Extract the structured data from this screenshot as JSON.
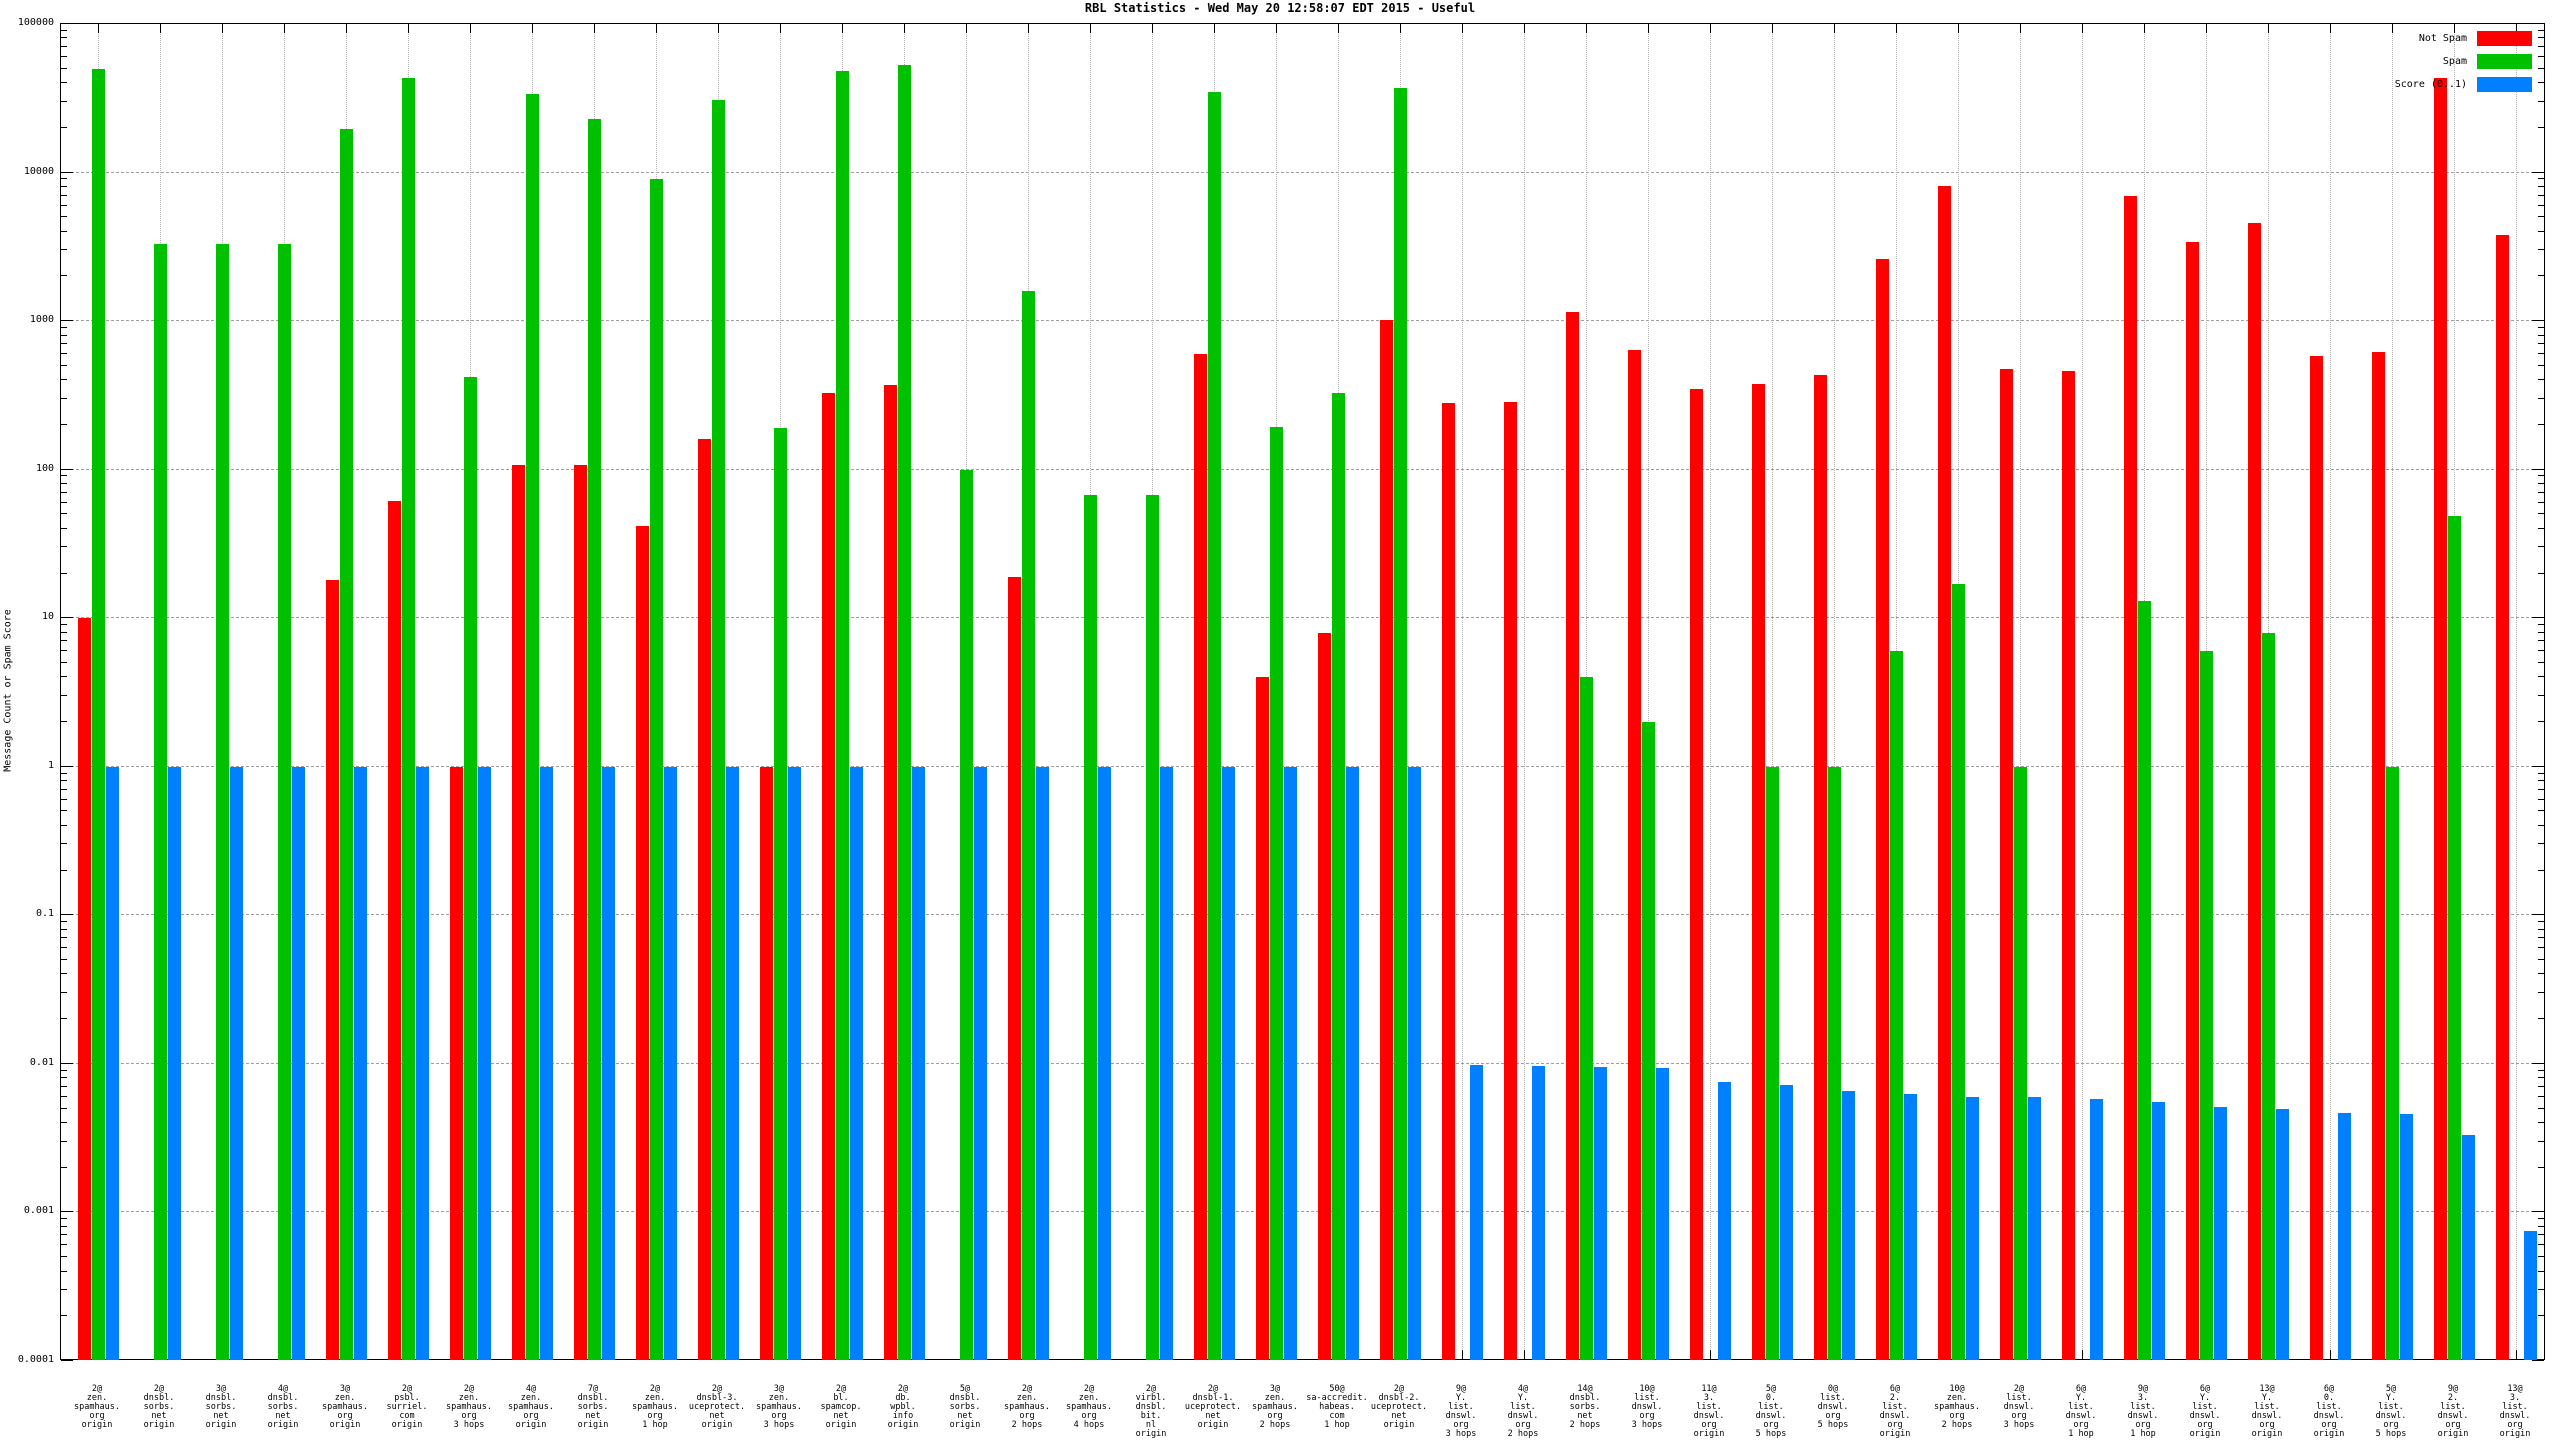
{
  "header": {
    "title": "RBL Statistics - Wed May 20 12:58:07 EDT 2015 - Useful"
  },
  "y_axis": {
    "label": "Message Count or Spam Score",
    "tick_labels": [
      "100000",
      "10000",
      "1000",
      "100",
      "10",
      "1",
      "0.1",
      "0.01",
      "0.001",
      "0.0001"
    ]
  },
  "legend": {
    "position": "top-right",
    "items": [
      {
        "name": "not-spam",
        "label": "Not Spam",
        "color": "#ff0000"
      },
      {
        "name": "spam",
        "label": "Spam",
        "color": "#00c000"
      },
      {
        "name": "score",
        "label": "Score (0..1)",
        "color": "#0080ff"
      }
    ]
  },
  "colors": {
    "not_spam": "#ff0000",
    "spam": "#00c000",
    "score": "#0080ff",
    "grid": "#9e9e9e",
    "frame": "#000000"
  },
  "chart_data": {
    "type": "bar",
    "y_scale": "log",
    "ylim": [
      0.0001,
      100000
    ],
    "grid": true,
    "title": "RBL Statistics - Wed May 20 12:58:07 EDT 2015 - Useful",
    "ylabel": "Message Count or Spam Score",
    "series_names": [
      "Not Spam",
      "Spam",
      "Score (0..1)"
    ],
    "groups": [
      {
        "label": "2@zen.spamhaus.org origin",
        "label_lines": [
          "2@",
          "zen.",
          "spamhaus.",
          "org",
          "origin"
        ],
        "not_spam": 10,
        "spam": 50000,
        "score": 1.0
      },
      {
        "label": "2@dnsbl.sorbs.net origin",
        "label_lines": [
          "2@",
          "dnsbl.",
          "sorbs.",
          "net",
          "origin"
        ],
        "not_spam": 0,
        "spam": 3300,
        "score": 1.0
      },
      {
        "label": "3@dnsbl.sorbs.net origin",
        "label_lines": [
          "3@",
          "dnsbl.",
          "sorbs.",
          "net",
          "origin"
        ],
        "not_spam": 0,
        "spam": 3300,
        "score": 1.0
      },
      {
        "label": "4@dnsbl.sorbs.net origin",
        "label_lines": [
          "4@",
          "dnsbl.",
          "sorbs.",
          "net",
          "origin"
        ],
        "not_spam": 0,
        "spam": 3300,
        "score": 1.0
      },
      {
        "label": "3@zen.spamhaus.org origin",
        "label_lines": [
          "3@",
          "zen.",
          "spamhaus.",
          "org",
          "origin"
        ],
        "not_spam": 18,
        "spam": 19500,
        "score": 1.0
      },
      {
        "label": "2@psbl.surriel.com origin",
        "label_lines": [
          "2@",
          "psbl.",
          "surriel.",
          "com",
          "origin"
        ],
        "not_spam": 62,
        "spam": 43000,
        "score": 1.0
      },
      {
        "label": "2@zen.spamhaus.org 3 hops",
        "label_lines": [
          "2@",
          "zen.",
          "spamhaus.",
          "org",
          "3 hops"
        ],
        "not_spam": 1,
        "spam": 420,
        "score": 1.0
      },
      {
        "label": "4@zen.spamhaus.org origin",
        "label_lines": [
          "4@",
          "zen.",
          "spamhaus.",
          "org",
          "origin"
        ],
        "not_spam": 107,
        "spam": 34000,
        "score": 1.0
      },
      {
        "label": "7@dnsbl.sorbs.net origin",
        "label_lines": [
          "7@",
          "dnsbl.",
          "sorbs.",
          "net",
          "origin"
        ],
        "not_spam": 107,
        "spam": 23000,
        "score": 1.0
      },
      {
        "label": "2@zen.spamhaus.org 1 hop",
        "label_lines": [
          "2@",
          "zen.",
          "spamhaus.",
          "org",
          "1 hop"
        ],
        "not_spam": 42,
        "spam": 9000,
        "score": 1.0
      },
      {
        "label": "2@dnsbl-3.uceprotect.net origin",
        "label_lines": [
          "2@",
          "dnsbl-3.",
          "uceprotect.",
          "net",
          "origin"
        ],
        "not_spam": 160,
        "spam": 31000,
        "score": 1.0
      },
      {
        "label": "3@zen.spamhaus.org 3 hops",
        "label_lines": [
          "3@",
          "zen.",
          "spamhaus.",
          "org",
          "3 hops"
        ],
        "not_spam": 1,
        "spam": 190,
        "score": 1.0
      },
      {
        "label": "2@bl.spamcop.net origin",
        "label_lines": [
          "2@",
          "bl.",
          "spamcop.",
          "net",
          "origin"
        ],
        "not_spam": 330,
        "spam": 48000,
        "score": 1.0
      },
      {
        "label": "2@db.wpbl.info origin",
        "label_lines": [
          "2@",
          "db.",
          "wpbl.",
          "info",
          "origin"
        ],
        "not_spam": 370,
        "spam": 53000,
        "score": 1.0
      },
      {
        "label": "5@dnsbl.sorbs.net origin",
        "label_lines": [
          "5@",
          "dnsbl.",
          "sorbs.",
          "net",
          "origin"
        ],
        "not_spam": 0,
        "spam": 100,
        "score": 1.0
      },
      {
        "label": "2@zen.spamhaus.org 2 hops",
        "label_lines": [
          "2@",
          "zen.",
          "spamhaus.",
          "org",
          "2 hops"
        ],
        "not_spam": 19,
        "spam": 1600,
        "score": 1.0
      },
      {
        "label": "2@zen.spamhaus.org 4 hops",
        "label_lines": [
          "2@",
          "zen.",
          "spamhaus.",
          "org",
          "4 hops"
        ],
        "not_spam": 0,
        "spam": 68,
        "score": 1.0
      },
      {
        "label": "2@virbl.dnsbl.bit.nl origin",
        "label_lines": [
          "2@",
          "virbl.",
          "dnsbl.",
          "bit.",
          "nl",
          "origin"
        ],
        "not_spam": 0,
        "spam": 68,
        "score": 1.0
      },
      {
        "label": "2@dnsbl-1.uceprotect.net origin",
        "label_lines": [
          "2@",
          "dnsbl-1.",
          "uceprotect.",
          "net",
          "origin"
        ],
        "not_spam": 600,
        "spam": 35000,
        "score": 1.0
      },
      {
        "label": "3@zen.spamhaus.org 2 hops",
        "label_lines": [
          "3@",
          "zen.",
          "spamhaus.",
          "org",
          "2 hops"
        ],
        "not_spam": 4,
        "spam": 195,
        "score": 1.0
      },
      {
        "label": "50@sa-accredit.habeas.com 1 hop",
        "label_lines": [
          "50@",
          "sa-accredit.",
          "habeas.",
          "com",
          "1 hop"
        ],
        "not_spam": 8,
        "spam": 330,
        "score": 1.0
      },
      {
        "label": "2@dnsbl-2.uceprotect.net origin",
        "label_lines": [
          "2@",
          "dnsbl-2.",
          "uceprotect.",
          "net",
          "origin"
        ],
        "not_spam": 1020,
        "spam": 37000,
        "score": 1.0
      },
      {
        "label": "9@Y.list.dnswl.org 3 hops",
        "label_lines": [
          "9@",
          "Y.",
          "list.",
          "dnswl.",
          "org",
          "3 hops"
        ],
        "not_spam": 280,
        "spam": 0,
        "score": 0.0098
      },
      {
        "label": "4@Y.list.dnswl.org 2 hops",
        "label_lines": [
          "4@",
          "Y.",
          "list.",
          "dnswl.",
          "org",
          "2 hops"
        ],
        "not_spam": 285,
        "spam": 0,
        "score": 0.0097
      },
      {
        "label": "14@dnsbl.sorbs.net 2 hops",
        "label_lines": [
          "14@",
          "dnsbl.",
          "sorbs.",
          "net",
          "2 hops"
        ],
        "not_spam": 1150,
        "spam": 4,
        "score": 0.0096
      },
      {
        "label": "10@list.dnswl.org 3 hops",
        "label_lines": [
          "10@",
          "list.",
          "dnswl.",
          "org",
          "3 hops"
        ],
        "not_spam": 640,
        "spam": 2,
        "score": 0.0094
      },
      {
        "label": "11@3.list.dnswl.org origin",
        "label_lines": [
          "11@",
          "3.",
          "list.",
          "dnswl.",
          "org",
          "origin"
        ],
        "not_spam": 350,
        "spam": 0,
        "score": 0.0076
      },
      {
        "label": "5@0.list.dnswl.org 5 hops",
        "label_lines": [
          "5@",
          "0.",
          "list.",
          "dnswl.",
          "org",
          "5 hops"
        ],
        "not_spam": 380,
        "spam": 1,
        "score": 0.0072
      },
      {
        "label": "0@list.dnswl.org 5 hops",
        "label_lines": [
          "0@",
          "list.",
          "dnswl.",
          "org",
          "5 hops"
        ],
        "not_spam": 435,
        "spam": 1,
        "score": 0.0066
      },
      {
        "label": "6@2.list.dnswl.org origin",
        "label_lines": [
          "6@",
          "2.",
          "list.",
          "dnswl.",
          "org",
          "origin"
        ],
        "not_spam": 2600,
        "spam": 6,
        "score": 0.0063
      },
      {
        "label": "10@zen.spamhaus.org 2 hops",
        "label_lines": [
          "10@",
          "zen.",
          "spamhaus.",
          "org",
          "2 hops"
        ],
        "not_spam": 8100,
        "spam": 17,
        "score": 0.006
      },
      {
        "label": "2@list.dnswl.org 3 hops",
        "label_lines": [
          "2@",
          "list.",
          "dnswl.",
          "org",
          "3 hops"
        ],
        "not_spam": 475,
        "spam": 1,
        "score": 0.006
      },
      {
        "label": "6@Y.list.dnswl.org 1 hop",
        "label_lines": [
          "6@",
          "Y.",
          "list.",
          "dnswl.",
          "org",
          "1 hop"
        ],
        "not_spam": 460,
        "spam": 0,
        "score": 0.0058
      },
      {
        "label": "9@3.list.dnswl.org 1 hop",
        "label_lines": [
          "9@",
          "3.",
          "list.",
          "dnswl.",
          "org",
          "1 hop"
        ],
        "not_spam": 6900,
        "spam": 13,
        "score": 0.0055
      },
      {
        "label": "6@Y.list.dnswl.org origin",
        "label_lines": [
          "6@",
          "Y.",
          "list.",
          "dnswl.",
          "org",
          "origin"
        ],
        "not_spam": 3400,
        "spam": 6,
        "score": 0.0051
      },
      {
        "label": "13@Y.list.dnswl.org origin",
        "label_lines": [
          "13@",
          "Y.",
          "list.",
          "dnswl.",
          "org",
          "origin"
        ],
        "not_spam": 4570,
        "spam": 8,
        "score": 0.005
      },
      {
        "label": "6@0.list.dnswl.org origin",
        "label_lines": [
          "6@",
          "0.",
          "list.",
          "dnswl.",
          "org",
          "origin"
        ],
        "not_spam": 580,
        "spam": 0,
        "score": 0.0047
      },
      {
        "label": "5@Y.list.dnswl.org 5 hops",
        "label_lines": [
          "5@",
          "Y.",
          "list.",
          "dnswl.",
          "org",
          "5 hops"
        ],
        "not_spam": 615,
        "spam": 1,
        "score": 0.0046
      },
      {
        "label": "9@2.list.dnswl.org origin",
        "label_lines": [
          "9@",
          "2.",
          "list.",
          "dnswl.",
          "org",
          "origin"
        ],
        "not_spam": 43500,
        "spam": 49,
        "score": 0.0033
      },
      {
        "label": "13@3.list.dnswl.org origin",
        "label_lines": [
          "13@",
          "3.",
          "list.",
          "dnswl.",
          "org",
          "origin"
        ],
        "not_spam": 3800,
        "spam": 0,
        "score": 0.00075
      }
    ]
  }
}
